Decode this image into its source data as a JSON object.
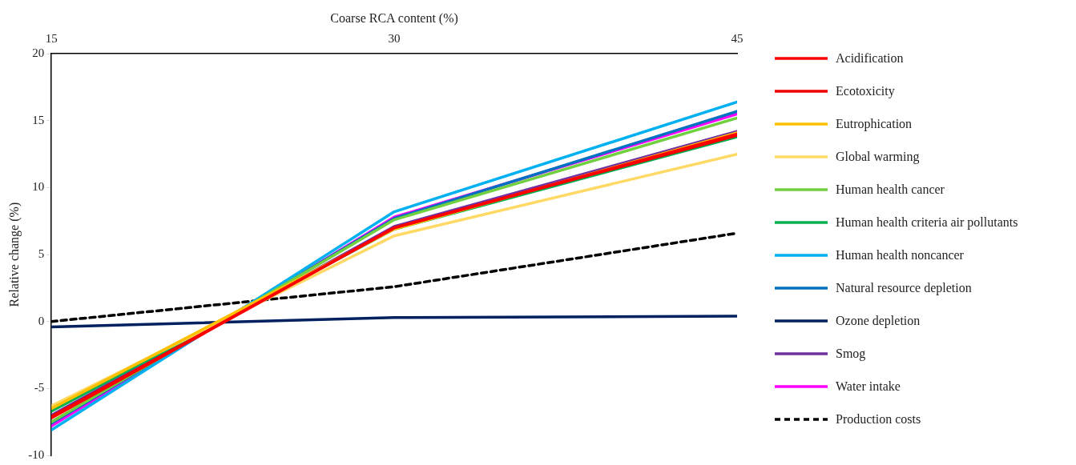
{
  "chart_data": {
    "type": "line",
    "xlabel": "Coarse RCA content (%)",
    "ylabel": "Relative change (%)",
    "x": [
      15,
      30,
      45
    ],
    "xlim": [
      15,
      45
    ],
    "xticks": [
      15,
      30,
      45
    ],
    "ylim": [
      -10,
      20
    ],
    "yticks": [
      -10,
      -5,
      0,
      5,
      10,
      15,
      20
    ],
    "grid": false,
    "legend": "right",
    "marker": "none",
    "series": [
      {
        "name": "Acidification",
        "color": "#ff0000",
        "values": [
          -7.2,
          7.0,
          14.0
        ]
      },
      {
        "name": "Ecotoxicity",
        "color": "#ee0000",
        "values": [
          -7.1,
          7.0,
          13.9
        ]
      },
      {
        "name": "Eutrophication",
        "color": "#ffc000",
        "values": [
          -6.5,
          6.9,
          14.1
        ]
      },
      {
        "name": "Global warming",
        "color": "#ffd966",
        "values": [
          -6.3,
          6.4,
          12.5
        ]
      },
      {
        "name": "Human health cancer",
        "color": "#70d040",
        "values": [
          -7.5,
          7.6,
          15.2
        ]
      },
      {
        "name": "Human health criteria air pollutants",
        "color": "#00b050",
        "values": [
          -6.7,
          6.9,
          13.8
        ]
      },
      {
        "name": "Human health noncancer",
        "color": "#00b0f0",
        "values": [
          -8.1,
          8.2,
          16.4
        ]
      },
      {
        "name": "Natural resource depletion",
        "color": "#0070c0",
        "values": [
          -7.6,
          7.7,
          15.7
        ]
      },
      {
        "name": "Ozone depletion",
        "color": "#002060",
        "values": [
          -0.4,
          0.3,
          0.4
        ]
      },
      {
        "name": "Smog",
        "color": "#7030a0",
        "values": [
          -7.0,
          7.1,
          14.2
        ]
      },
      {
        "name": "Water intake",
        "color": "#ff00ff",
        "values": [
          -7.8,
          7.8,
          15.5
        ]
      },
      {
        "name": "Production costs",
        "color": "#000000",
        "line_style": "dashed",
        "values": [
          0,
          2.6,
          6.6
        ]
      }
    ]
  }
}
